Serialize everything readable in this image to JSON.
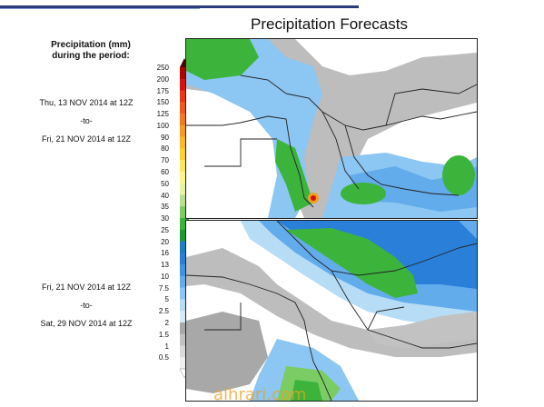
{
  "header": {
    "title": "Precipitation Forecasts",
    "subtitle_line1": "Precipitation (mm)",
    "subtitle_line2": "during the period:"
  },
  "periods": [
    {
      "start": "Thu, 13 NOV 2014 at 12Z",
      "sep": "-to-",
      "end": "Fri, 21 NOV 2014 at 12Z"
    },
    {
      "start": "Fri, 21 NOV 2014 at 12Z",
      "sep": "-to-",
      "end": "Sat, 29 NOV 2014 at 12Z"
    }
  ],
  "legend": {
    "ticks": [
      "250",
      "200",
      "175",
      "150",
      "125",
      "100",
      "90",
      "80",
      "70",
      "60",
      "50",
      "40",
      "35",
      "30",
      "25",
      "20",
      "16",
      "13",
      "10",
      "7.5",
      "5",
      "2.5",
      "2",
      "1.5",
      "1",
      "0.5"
    ],
    "colors": [
      "#b00000",
      "#d81010",
      "#e83818",
      "#f05a1a",
      "#f47a20",
      "#f89a24",
      "#fbb82a",
      "#fbd232",
      "#fde85a",
      "#fff58a",
      "#e8f3a0",
      "#b8e090",
      "#7ccc64",
      "#3cb43c",
      "#1e9a32",
      "#1a7fbe",
      "#2a7fd8",
      "#3f93e4",
      "#63acec",
      "#8cc6f2",
      "#b6dcf6",
      "#d6ebf8",
      "#a8a8a8",
      "#c2c2c2",
      "#dadada",
      "#f0f0f0"
    ]
  },
  "watermark": "alhrari.com"
}
